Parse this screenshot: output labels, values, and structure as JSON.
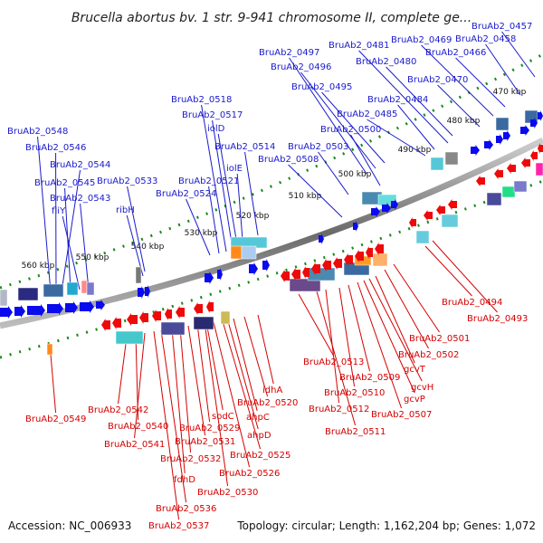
{
  "header": {
    "title": "Brucella abortus bv. 1 str. 9-941 chromosome II, complete ge..."
  },
  "footer": {
    "accession": "Accession: NC_006933",
    "summary": "Topology: circular; Length: 1,162,204 bp; Genes: 1,072"
  },
  "colors": {
    "forward_gene": "#0a0aee",
    "reverse_gene": "#ee0a0a",
    "backbone": "#8a8a8a",
    "tick": "#1a8a1a",
    "label_top": "#1a1acc",
    "label_bottom": "#d40000"
  },
  "scale_labels": [
    "470 kbp",
    "480 kbp",
    "490 kbp",
    "500 kbp",
    "510 kbp",
    "520 kbp",
    "530 kbp",
    "540 kbp",
    "550 kbp",
    "560 kbp"
  ],
  "labels_top": [
    "BruAb2_0457",
    "BruAb2_0458",
    "BruAb2_0466",
    "BruAb2_0469",
    "BruAb2_0470",
    "BruAb2_0480",
    "BruAb2_0481",
    "BruAb2_0484",
    "BruAb2_0485",
    "BruAb2_0495",
    "BruAb2_0496",
    "BruAb2_0497",
    "BruAb2_0500",
    "BruAb2_0503",
    "BruAb2_0508",
    "BruAb2_0514",
    "iolE",
    "iolD",
    "BruAb2_0517",
    "BruAb2_0518",
    "BruAb2_0521",
    "BruAb2_0524",
    "BruAb2_0533",
    "ribH",
    "BruAb2_0543",
    "fliY",
    "BruAb2_0545",
    "BruAb2_0544",
    "BruAb2_0546",
    "BruAb2_0548"
  ],
  "labels_bottom": [
    "BruAb2_0494",
    "BruAb2_0493",
    "BruAb2_0501",
    "BruAb2_0502",
    "gcvT",
    "gcvH",
    "gcvP",
    "BruAb2_0507",
    "BruAb2_0509",
    "BruAb2_0510",
    "BruAb2_0512",
    "BruAb2_0511",
    "BruAb2_0513",
    "idhA",
    "BruAb2_0520",
    "ahpC",
    "ahpD",
    "BruAb2_0525",
    "BruAb2_0526",
    "BruAb2_0530",
    "sodC",
    "BruAb2_0529",
    "BruAb2_0531",
    "BruAb2_0532",
    "fdhD",
    "BruAb2_0536",
    "BruAb2_0537",
    "BruAb2_0541",
    "BruAb2_0540",
    "BruAb2_0542",
    "BruAb2_0549"
  ]
}
